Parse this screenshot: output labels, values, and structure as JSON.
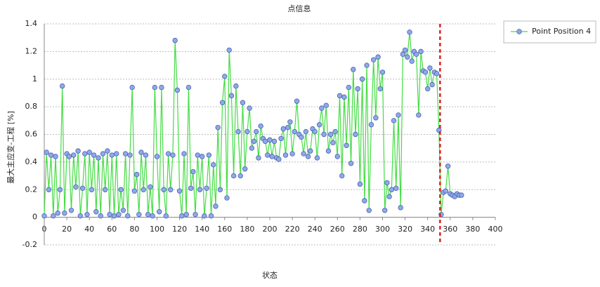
{
  "chart_data": {
    "type": "line",
    "title": "点信息",
    "x_label": "状态",
    "y_label": "最大主应变-工程 [%]",
    "x": [
      0,
      2,
      4,
      6,
      8,
      10,
      12,
      14,
      16,
      18,
      20,
      22,
      24,
      26,
      28,
      30,
      32,
      34,
      36,
      38,
      40,
      42,
      44,
      46,
      48,
      50,
      52,
      54,
      56,
      58,
      60,
      62,
      64,
      66,
      68,
      70,
      72,
      74,
      76,
      78,
      80,
      82,
      84,
      86,
      88,
      90,
      92,
      94,
      96,
      98,
      100,
      102,
      104,
      106,
      108,
      110,
      112,
      114,
      116,
      118,
      120,
      122,
      124,
      126,
      128,
      130,
      132,
      134,
      136,
      138,
      140,
      142,
      144,
      146,
      148,
      150,
      152,
      154,
      156,
      158,
      160,
      162,
      164,
      166,
      168,
      170,
      172,
      174,
      176,
      178,
      180,
      182,
      184,
      186,
      188,
      190,
      192,
      194,
      196,
      198,
      200,
      202,
      204,
      206,
      208,
      210,
      212,
      214,
      216,
      218,
      220,
      222,
      224,
      226,
      228,
      230,
      232,
      234,
      236,
      238,
      240,
      242,
      244,
      246,
      248,
      250,
      252,
      254,
      256,
      258,
      260,
      262,
      264,
      266,
      268,
      270,
      272,
      274,
      276,
      278,
      280,
      282,
      284,
      286,
      288,
      290,
      292,
      294,
      296,
      298,
      300,
      302,
      304,
      306,
      308,
      310,
      312,
      314,
      316,
      318,
      320,
      322,
      324,
      326,
      328,
      330,
      332,
      334,
      336,
      338,
      340,
      342,
      344,
      346,
      348,
      350,
      352,
      354,
      356,
      358,
      360,
      362,
      364,
      366,
      368,
      370
    ],
    "series": [
      {
        "name": "Point Position 4",
        "color": "#44dd44",
        "marker_color": "#8ea9e8",
        "values": [
          0.01,
          0.47,
          0.2,
          0.45,
          0.01,
          0.44,
          0.03,
          0.2,
          0.95,
          0.03,
          0.46,
          0.44,
          0.05,
          0.45,
          0.22,
          0.48,
          0.01,
          0.21,
          0.46,
          0.02,
          0.47,
          0.2,
          0.45,
          0.04,
          0.43,
          0.01,
          0.46,
          0.2,
          0.48,
          0.02,
          0.45,
          0.01,
          0.46,
          0.02,
          0.2,
          0.05,
          0.46,
          0.01,
          0.45,
          0.94,
          0.19,
          0.31,
          0.02,
          0.47,
          0.2,
          0.45,
          0.02,
          0.22,
          0.01,
          0.94,
          0.44,
          0.04,
          0.94,
          0.2,
          0.01,
          0.46,
          0.2,
          0.45,
          1.28,
          0.92,
          0.19,
          0.01,
          0.46,
          0.02,
          0.94,
          0.21,
          0.33,
          0.02,
          0.45,
          0.2,
          0.44,
          0.01,
          0.21,
          0.45,
          0.01,
          0.38,
          0.08,
          0.65,
          0.2,
          0.83,
          1.02,
          0.14,
          1.21,
          0.88,
          0.3,
          0.95,
          0.62,
          0.3,
          0.83,
          0.35,
          0.62,
          0.79,
          0.5,
          0.55,
          0.62,
          0.43,
          0.66,
          0.57,
          0.55,
          0.45,
          0.56,
          0.44,
          0.55,
          0.43,
          0.42,
          0.57,
          0.64,
          0.45,
          0.65,
          0.69,
          0.46,
          0.62,
          0.84,
          0.6,
          0.58,
          0.46,
          0.62,
          0.44,
          0.48,
          0.64,
          0.62,
          0.43,
          0.67,
          0.79,
          0.6,
          0.81,
          0.48,
          0.6,
          0.54,
          0.62,
          0.44,
          0.88,
          0.3,
          0.87,
          0.52,
          0.94,
          0.39,
          1.07,
          0.6,
          0.93,
          0.24,
          1.0,
          0.12,
          1.1,
          0.05,
          0.67,
          1.14,
          0.72,
          1.16,
          0.93,
          1.05,
          0.05,
          0.25,
          0.15,
          0.2,
          0.7,
          0.21,
          0.74,
          0.07,
          1.18,
          1.21,
          1.16,
          1.34,
          1.13,
          1.2,
          1.18,
          0.74,
          1.2,
          1.06,
          1.05,
          0.93,
          1.08,
          0.96,
          1.05,
          1.04,
          0.63,
          0.02,
          0.18,
          0.19,
          0.37,
          0.17,
          0.16,
          0.15,
          0.17,
          0.16,
          0.16
        ]
      }
    ],
    "reference_line": {
      "x": 351,
      "color": "#dd2222"
    },
    "xlim": [
      0,
      400
    ],
    "xticks": [
      0,
      20,
      40,
      60,
      80,
      100,
      120,
      140,
      160,
      180,
      200,
      220,
      240,
      260,
      280,
      300,
      320,
      340,
      360,
      380,
      400
    ],
    "ylim": [
      -0.2,
      1.4
    ],
    "yticks": [
      -0.2,
      0,
      0.2,
      0.4,
      0.6,
      0.8,
      1,
      1.2,
      1.4
    ],
    "grid": true,
    "legend": "top-right"
  }
}
